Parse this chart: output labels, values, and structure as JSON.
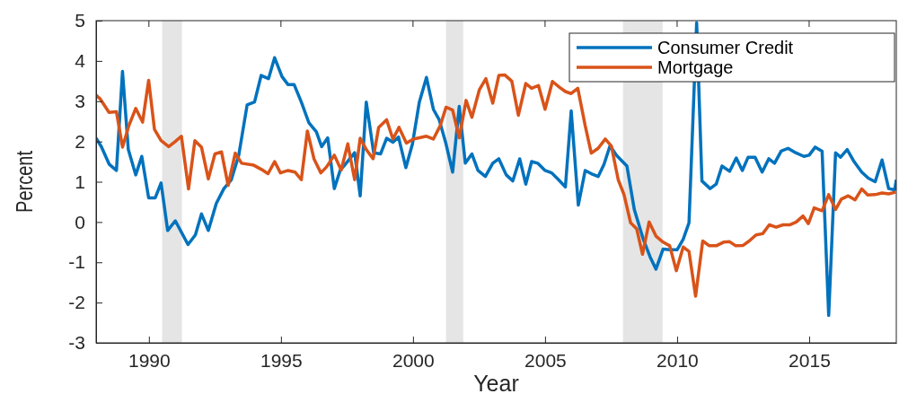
{
  "chart_data": {
    "type": "line",
    "xlabel": "Year",
    "ylabel": "Percent",
    "xlim": [
      1988,
      2018.3
    ],
    "xticks": [
      1990,
      1995,
      2000,
      2005,
      2010,
      2015
    ],
    "ylim": [
      -3,
      5
    ],
    "yticks": [
      -3,
      -2,
      -1,
      0,
      1,
      2,
      3,
      4,
      5
    ],
    "grid": false,
    "legend": "top right",
    "line_style": "solid",
    "marker": "none",
    "bands": [
      {
        "axis": "x",
        "from": 1990.5,
        "to": 1991.25,
        "color": "#e5e5e5"
      },
      {
        "axis": "x",
        "from": 2001.25,
        "to": 2001.9,
        "color": "#e5e5e5"
      },
      {
        "axis": "x",
        "from": 2007.95,
        "to": 2009.45,
        "color": "#e5e5e5"
      }
    ],
    "series": [
      {
        "name": "Consumer Credit",
        "color": "#0072bd",
        "x": [
          1988.0,
          1988.2,
          1988.5,
          1988.77,
          1989.0,
          1989.22,
          1989.5,
          1989.73,
          1989.99,
          1990.24,
          1990.46,
          1990.71,
          1991.0,
          1991.48,
          1991.76,
          1991.99,
          1992.25,
          1992.55,
          1992.84,
          1993.12,
          1993.4,
          1993.72,
          1994.0,
          1994.25,
          1994.53,
          1994.76,
          1995.04,
          1995.27,
          1995.5,
          1995.77,
          1996.06,
          1996.34,
          1996.54,
          1996.77,
          1997.02,
          1997.24,
          1997.47,
          1997.79,
          1998.0,
          1998.23,
          1998.51,
          1998.77,
          1999.0,
          1999.24,
          1999.45,
          1999.73,
          1999.98,
          2000.24,
          2000.51,
          2000.77,
          2000.99,
          2001.25,
          2001.5,
          2001.75,
          2001.98,
          2002.23,
          2002.46,
          2002.74,
          2003.02,
          2003.25,
          2003.53,
          2003.78,
          2004.04,
          2004.27,
          2004.49,
          2004.72,
          2005.0,
          2005.25,
          2005.51,
          2005.77,
          2005.99,
          2006.26,
          2006.52,
          2006.75,
          2007.01,
          2007.23,
          2007.46,
          2007.71,
          2008.1,
          2008.38,
          2008.72,
          2008.98,
          2009.2,
          2009.47,
          2009.72,
          2010.0,
          2010.23,
          2010.45,
          2010.74,
          2010.94,
          2011.25,
          2011.48,
          2011.7,
          2011.99,
          2012.24,
          2012.47,
          2012.69,
          2012.95,
          2013.22,
          2013.47,
          2013.69,
          2013.94,
          2014.2,
          2014.49,
          2014.8,
          2015.0,
          2015.23,
          2015.49,
          2015.74,
          2016.0,
          2016.19,
          2016.44,
          2016.7,
          2016.99,
          2017.24,
          2017.5,
          2017.76,
          2018.01,
          2018.24,
          2018.3
        ],
        "values": [
          2.08,
          1.87,
          1.43,
          1.28,
          3.74,
          1.8,
          1.17,
          1.63,
          0.6,
          0.6,
          0.97,
          -0.21,
          0.03,
          -0.56,
          -0.32,
          0.2,
          -0.21,
          0.46,
          0.83,
          1.05,
          1.65,
          2.91,
          2.98,
          3.64,
          3.56,
          4.08,
          3.61,
          3.41,
          3.41,
          2.98,
          2.46,
          2.24,
          1.87,
          2.09,
          0.83,
          1.28,
          1.46,
          1.72,
          0.65,
          2.98,
          1.72,
          1.69,
          2.08,
          1.98,
          2.11,
          1.35,
          1.94,
          2.98,
          3.59,
          2.8,
          2.54,
          1.94,
          1.24,
          2.87,
          1.46,
          1.69,
          1.28,
          1.13,
          1.46,
          1.57,
          1.17,
          1.02,
          1.57,
          0.94,
          1.5,
          1.46,
          1.28,
          1.22,
          1.05,
          0.87,
          2.76,
          0.42,
          1.28,
          1.2,
          1.13,
          1.43,
          1.89,
          1.65,
          1.39,
          0.31,
          -0.43,
          -0.87,
          -1.17,
          -0.67,
          -0.69,
          -0.69,
          -0.43,
          -0.02,
          4.95,
          1.02,
          0.83,
          0.94,
          1.39,
          1.26,
          1.59,
          1.28,
          1.61,
          1.61,
          1.24,
          1.57,
          1.46,
          1.76,
          1.83,
          1.72,
          1.63,
          1.66,
          1.86,
          1.76,
          -2.32,
          1.72,
          1.61,
          1.8,
          1.5,
          1.24,
          1.09,
          1.0,
          1.54,
          0.83,
          0.8,
          1.05
        ]
      },
      {
        "name": "Mortgage",
        "color": "#d95319",
        "x": [
          1988.0,
          1988.15,
          1988.49,
          1988.77,
          1989.0,
          1989.24,
          1989.5,
          1989.76,
          1989.99,
          1990.21,
          1990.46,
          1990.75,
          1991.0,
          1991.23,
          1991.5,
          1991.74,
          1991.99,
          1992.25,
          1992.5,
          1992.75,
          1993.0,
          1993.27,
          1993.51,
          1993.97,
          1994.25,
          1994.51,
          1994.76,
          1994.98,
          1995.27,
          1995.53,
          1995.77,
          1996.0,
          1996.25,
          1996.51,
          1996.73,
          1997.02,
          1997.28,
          1997.53,
          1997.79,
          1998.0,
          1998.23,
          1998.49,
          1998.7,
          1999.0,
          1999.24,
          1999.47,
          1999.75,
          2000.01,
          2000.51,
          2000.77,
          2001.03,
          2001.25,
          2001.5,
          2001.75,
          2002.01,
          2002.23,
          2002.51,
          2002.76,
          2003.02,
          2003.25,
          2003.48,
          2003.74,
          2003.99,
          2004.27,
          2004.49,
          2004.75,
          2005.0,
          2005.28,
          2005.54,
          2005.77,
          2005.99,
          2006.24,
          2006.52,
          2006.75,
          2007.01,
          2007.28,
          2007.51,
          2007.77,
          2007.99,
          2008.24,
          2008.47,
          2008.69,
          2008.94,
          2009.2,
          2009.47,
          2009.72,
          2009.97,
          2010.23,
          2010.45,
          2010.7,
          2010.97,
          2011.22,
          2011.48,
          2011.76,
          2011.99,
          2012.22,
          2012.5,
          2012.73,
          2012.99,
          2013.24,
          2013.49,
          2013.75,
          2014.01,
          2014.26,
          2014.51,
          2014.77,
          2014.97,
          2015.19,
          2015.49,
          2015.74,
          2016.0,
          2016.22,
          2016.48,
          2016.74,
          2016.99,
          2017.22,
          2017.5,
          2017.76,
          2018.01,
          2018.27
        ],
        "values": [
          3.15,
          3.06,
          2.72,
          2.74,
          1.86,
          2.39,
          2.82,
          2.48,
          3.52,
          2.3,
          2.02,
          1.87,
          2.0,
          2.13,
          0.82,
          2.02,
          1.86,
          1.07,
          1.69,
          1.74,
          0.91,
          1.71,
          1.46,
          1.41,
          1.31,
          1.2,
          1.5,
          1.22,
          1.28,
          1.24,
          1.05,
          2.26,
          1.57,
          1.22,
          1.37,
          1.66,
          1.29,
          1.94,
          1.05,
          2.08,
          1.8,
          1.57,
          2.35,
          2.54,
          2.06,
          2.35,
          1.96,
          2.06,
          2.13,
          2.06,
          2.39,
          2.85,
          2.78,
          2.09,
          3.02,
          2.6,
          3.28,
          3.56,
          2.95,
          3.64,
          3.65,
          3.5,
          2.65,
          3.44,
          3.32,
          3.39,
          2.8,
          3.49,
          3.35,
          3.24,
          3.19,
          3.32,
          2.39,
          1.71,
          1.83,
          2.06,
          1.89,
          1.05,
          0.68,
          -0.02,
          -0.17,
          -0.8,
          0.0,
          -0.35,
          -0.5,
          -0.59,
          -1.21,
          -0.62,
          -0.73,
          -1.84,
          -0.47,
          -0.59,
          -0.59,
          -0.5,
          -0.49,
          -0.59,
          -0.58,
          -0.47,
          -0.32,
          -0.29,
          -0.07,
          -0.13,
          -0.07,
          -0.07,
          0.0,
          0.15,
          -0.04,
          0.35,
          0.28,
          0.68,
          0.31,
          0.57,
          0.65,
          0.55,
          0.82,
          0.67,
          0.68,
          0.72,
          0.7,
          0.74
        ]
      }
    ]
  }
}
